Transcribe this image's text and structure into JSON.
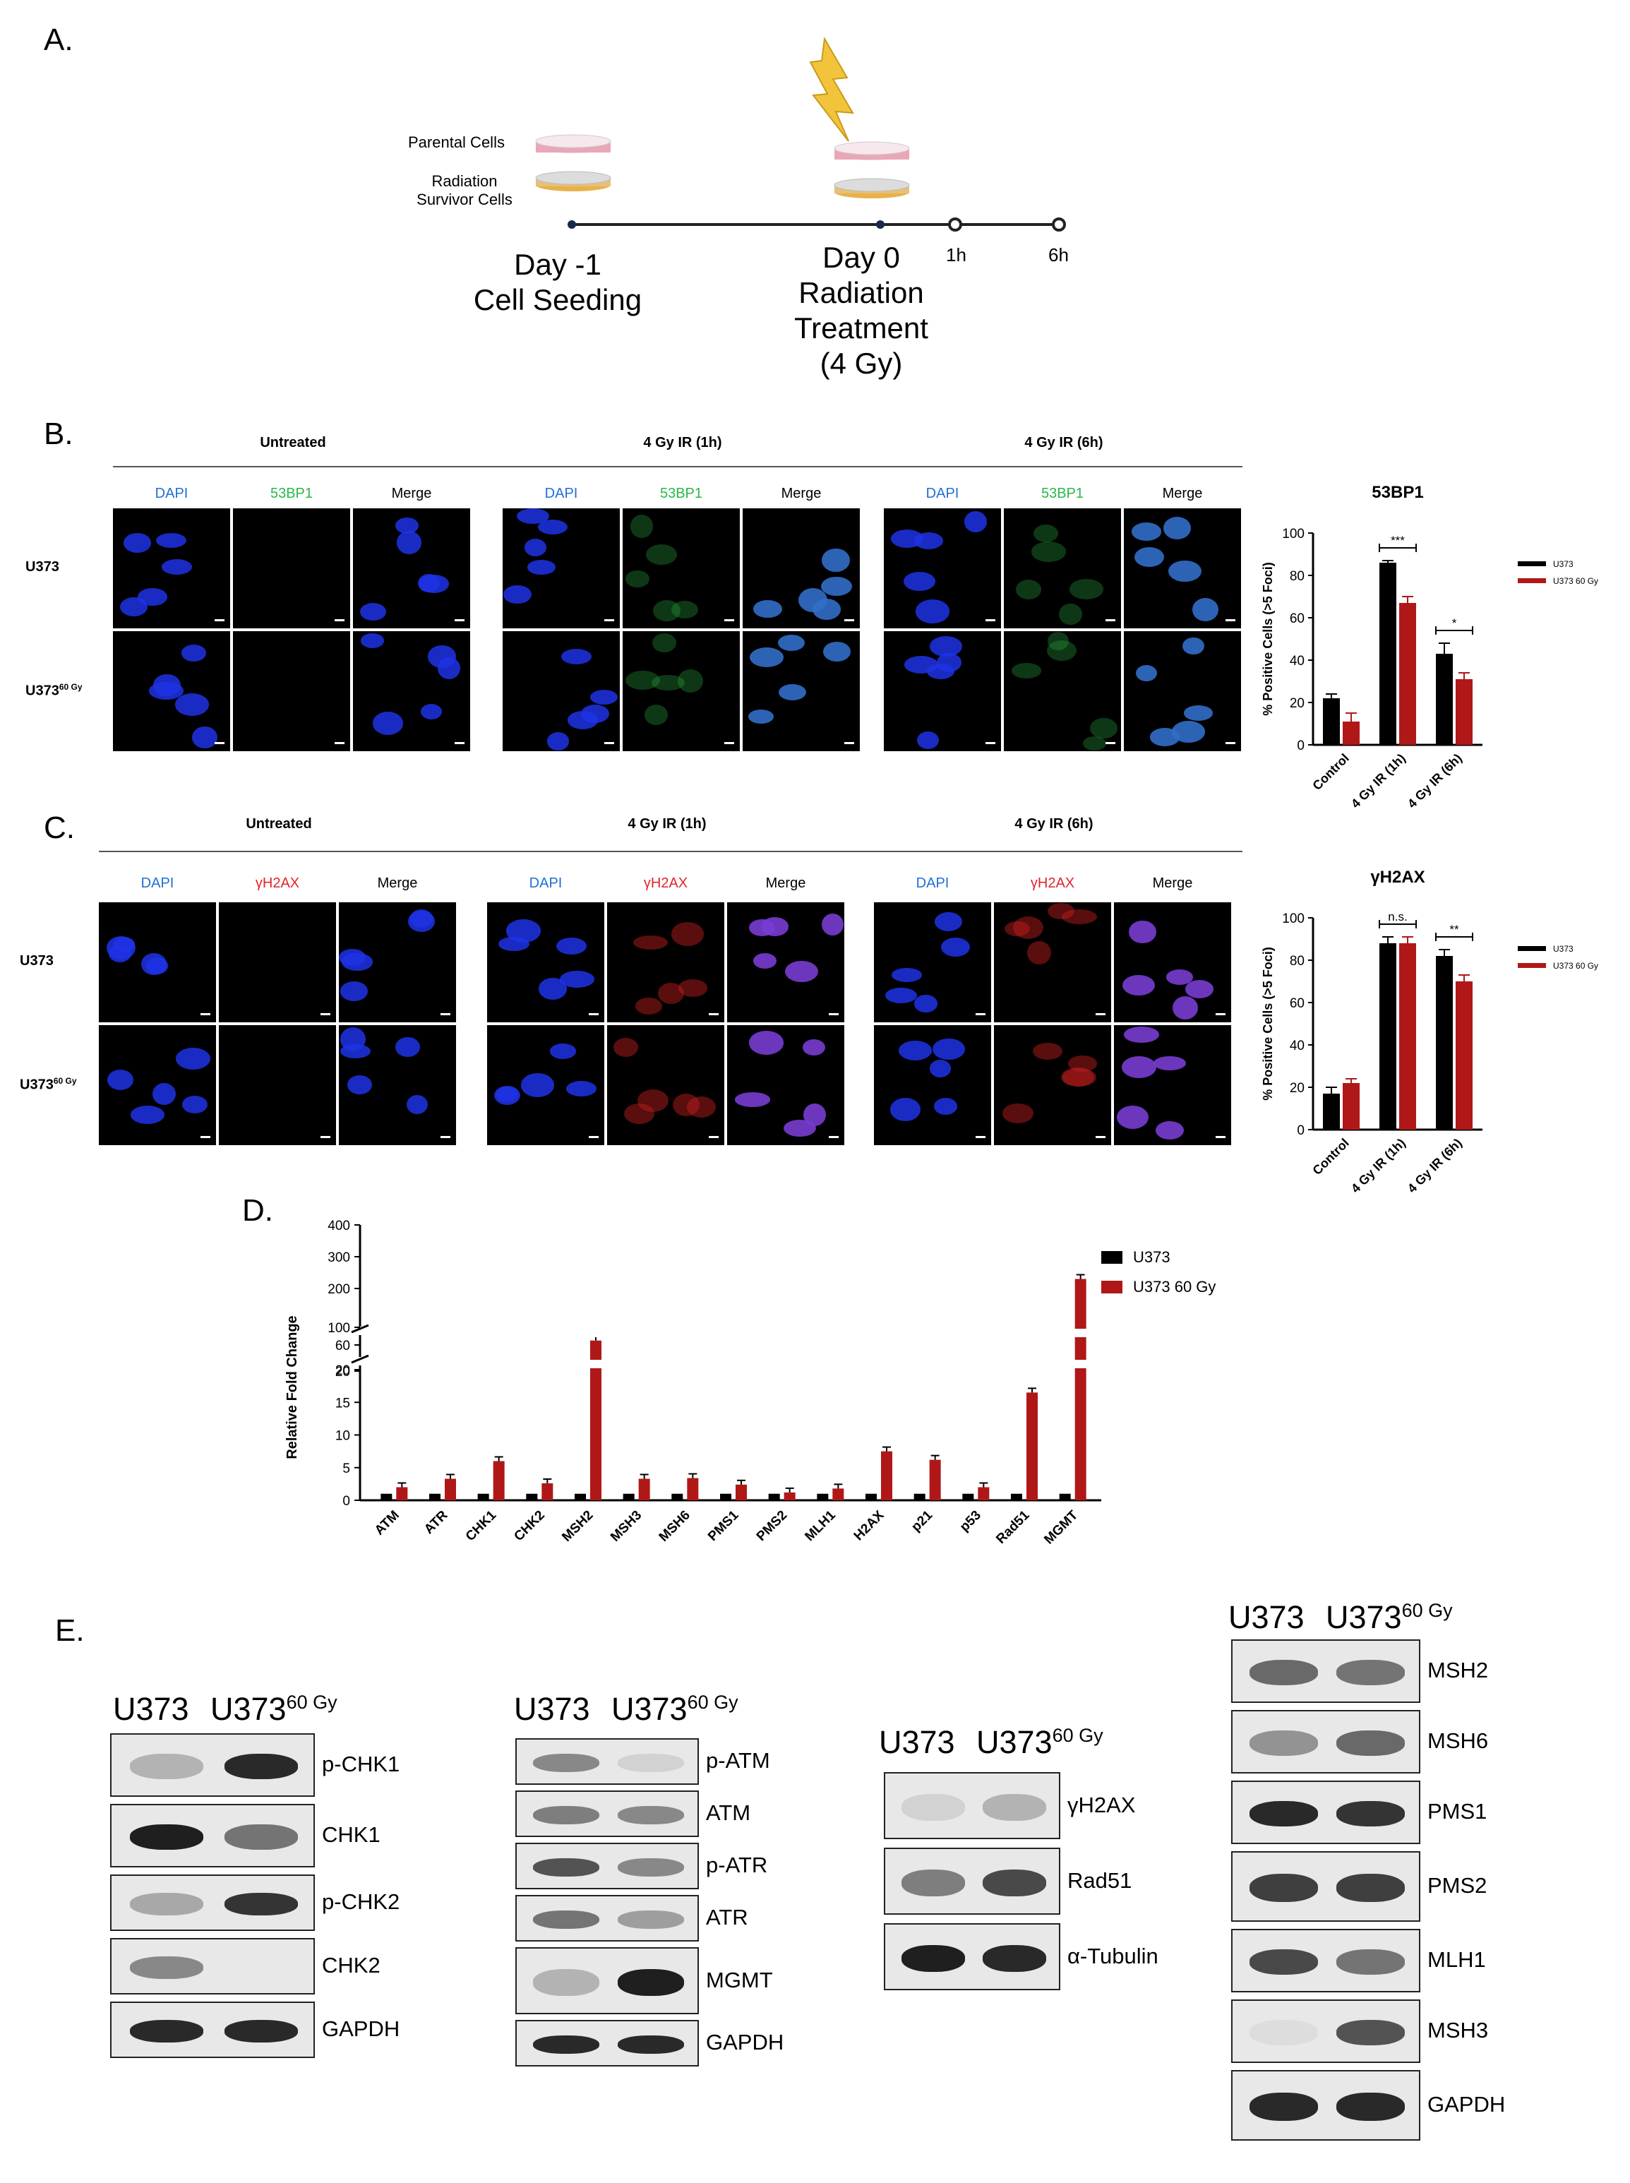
{
  "panel_labels": {
    "a": "A.",
    "b": "B.",
    "c": "C.",
    "d": "D.",
    "e": "E."
  },
  "panelA": {
    "parental_label": "Parental Cells",
    "survivor_label": "Radiation\nSurvivor Cells",
    "day_minus1": "Day -1\nCell Seeding",
    "day0": "Day 0\nRadiation\nTreatment\n(4 Gy)",
    "t1": "1h",
    "t6": "6h",
    "colors": {
      "parental": "#e9a7b8",
      "survivor": "#e8b24a",
      "bolt": "#f2c43c"
    }
  },
  "panelB": {
    "groups": [
      "Untreated",
      "4 Gy IR (1h)",
      "4 Gy IR (6h)"
    ],
    "channels": [
      "DAPI",
      "53BP1",
      "Merge"
    ],
    "rows": [
      "U373",
      "U373"
    ],
    "row_sup": "60 Gy",
    "chart_title": "53BP1"
  },
  "panelC": {
    "groups": [
      "Untreated",
      "4 Gy IR (1h)",
      "4 Gy IR (6h)"
    ],
    "channels": [
      "DAPI",
      "γH2AX",
      "Merge"
    ],
    "rows": [
      "U373",
      "U373"
    ],
    "row_sup": "60 Gy",
    "chart_title": "γH2AX"
  },
  "chart_data": [
    {
      "type": "bar",
      "title": "53BP1",
      "ylabel": "% Positive Cells (>5 Foci)",
      "categories": [
        "Control",
        "4 Gy IR (1h)",
        "4 Gy IR (6h)"
      ],
      "ylim": [
        0,
        100
      ],
      "yticks": [
        0,
        20,
        40,
        60,
        80,
        100
      ],
      "series": [
        {
          "name": "U373",
          "values": [
            22,
            86,
            43
          ],
          "errors": [
            2,
            1,
            5
          ],
          "color": "#000000"
        },
        {
          "name": "U373 60 Gy",
          "values": [
            11,
            67,
            31
          ],
          "errors": [
            4,
            3,
            3
          ],
          "color": "#b01818"
        }
      ],
      "significance": [
        "",
        "***",
        "*"
      ]
    },
    {
      "type": "bar",
      "title": "γH2AX",
      "ylabel": "% Positive Cells (>5 Foci)",
      "categories": [
        "Control",
        "4 Gy IR (1h)",
        "4 Gy IR (6h)"
      ],
      "ylim": [
        0,
        100
      ],
      "yticks": [
        0,
        20,
        40,
        60,
        80,
        100
      ],
      "series": [
        {
          "name": "U373",
          "values": [
            17,
            88,
            82
          ],
          "errors": [
            3,
            3,
            3
          ],
          "color": "#000000"
        },
        {
          "name": "U373 60 Gy",
          "values": [
            22,
            88,
            70
          ],
          "errors": [
            2,
            3,
            3
          ],
          "color": "#b01818"
        }
      ],
      "significance": [
        "",
        "n.s.",
        "**"
      ]
    },
    {
      "type": "bar",
      "ylabel": "Relative Fold Change",
      "categories": [
        "ATM",
        "ATR",
        "CHK1",
        "CHK2",
        "MSH2",
        "MSH3",
        "MSH6",
        "PMS1",
        "PMS2",
        "MLH1",
        "H2AX",
        "p21",
        "p53",
        "Rad51",
        "MGMT"
      ],
      "yticks": [
        "0",
        "5",
        "10",
        "15",
        "20",
        "20",
        "60",
        "100",
        "200",
        "300",
        "400"
      ],
      "broken_axis": true,
      "series": [
        {
          "name": "U373",
          "values": [
            1,
            1,
            1,
            1,
            1,
            1,
            1,
            1,
            1,
            1,
            1,
            1,
            1,
            1,
            1
          ],
          "color": "#000000"
        },
        {
          "name": "U373 60 Gy",
          "values": [
            2,
            3.3,
            6,
            2.6,
            70,
            3.3,
            3.4,
            2.4,
            1.2,
            1.8,
            7.5,
            6.2,
            2,
            16.5,
            230
          ],
          "color": "#b01818"
        }
      ]
    }
  ],
  "panelE": {
    "lane1": "U373",
    "lane2": "U373",
    "lane2_sup": "60 Gy",
    "blot1": [
      "p-CHK1",
      "CHK1",
      "p-CHK2",
      "CHK2",
      "GAPDH"
    ],
    "blot2": [
      "p-ATM",
      "ATM",
      "p-ATR",
      "ATR",
      "MGMT",
      "GAPDH"
    ],
    "blot3": [
      "γH2AX",
      "Rad51",
      "α-Tubulin"
    ],
    "blot4": [
      "MSH2",
      "MSH6",
      "PMS1",
      "PMS2",
      "MLH1",
      "MSH3",
      "GAPDH"
    ]
  }
}
